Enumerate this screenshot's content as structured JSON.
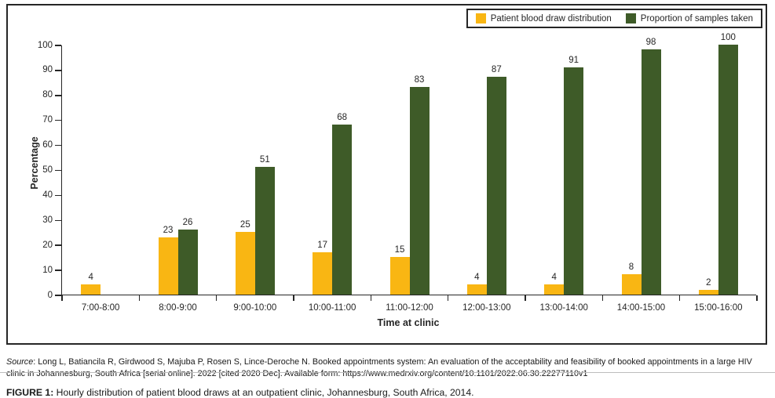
{
  "chart_data": {
    "type": "bar",
    "title": "",
    "categories": [
      "7:00-8:00",
      "8:00-9:00",
      "9:00-10:00",
      "10:00-11:00",
      "11:00-12:00",
      "12:00-13:00",
      "13:00-14:00",
      "14:00-15:00",
      "15:00-16:00"
    ],
    "series": [
      {
        "name": "Patient blood draw distribution",
        "color": "#F9B613",
        "values": [
          4,
          23,
          25,
          17,
          15,
          4,
          4,
          8,
          2
        ]
      },
      {
        "name": "Proportion of samples taken",
        "color": "#3E5B28",
        "values": [
          null,
          26,
          51,
          68,
          83,
          87,
          91,
          98,
          100
        ]
      }
    ],
    "xlabel": "Time at clinic",
    "ylabel": "Percentage",
    "ylim": [
      0,
      100
    ],
    "yticks": [
      0,
      10,
      20,
      30,
      40,
      50,
      60,
      70,
      80,
      90,
      100
    ],
    "grid": false,
    "legend_position": "top-right",
    "bar_labels_shown": true
  },
  "footer": {
    "source_label": "Source",
    "source_text": ": Long L, Batiancila R, Girdwood S, Majuba P, Rosen S, Lince-Deroche N. Booked appointments system: An evaluation of the acceptability and feasibility of booked appointments in a large HIV clinic in Johannesburg, South Africa [serial online]. 2022 [cited 2020 Dec]. Available form: https://www.medrxiv.org/content/10.1101/2022.06.30.22277110v1",
    "figure_label": "FIGURE 1:",
    "figure_caption": " Hourly distribution of patient blood draws at an outpatient clinic, Johannesburg, South Africa, 2014."
  }
}
